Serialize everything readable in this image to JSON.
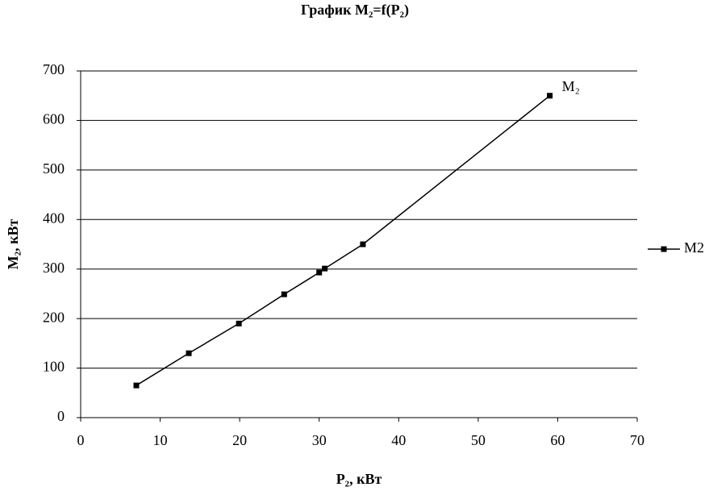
{
  "chart_data": {
    "type": "line",
    "title": "График M₂=f(P₂)",
    "x_label": "P₂, кВт",
    "y_label": "M₂, кВт",
    "annotation": "M₂",
    "x": [
      7.0,
      13.6,
      19.9,
      25.6,
      30.0,
      30.7,
      35.5,
      59.0
    ],
    "series": [
      {
        "name": "M2",
        "color": "#000000",
        "values": [
          65,
          130,
          190,
          249,
          293,
          301,
          350,
          650
        ]
      }
    ],
    "xlim": [
      0,
      70
    ],
    "xticks": [
      0,
      10,
      20,
      30,
      40,
      50,
      60,
      70
    ],
    "ylim": [
      0,
      700
    ],
    "yticks": [
      0,
      100,
      200,
      300,
      400,
      500,
      600,
      700
    ],
    "grid": true,
    "legend": "right"
  }
}
